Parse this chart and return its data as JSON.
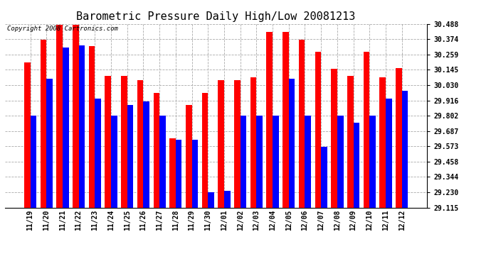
{
  "title": "Barometric Pressure Daily High/Low 20081213",
  "copyright": "Copyright 2008 Cartronics.com",
  "dates": [
    "11/19",
    "11/20",
    "11/21",
    "11/22",
    "11/23",
    "11/24",
    "11/25",
    "11/26",
    "11/27",
    "11/28",
    "11/29",
    "11/30",
    "12/01",
    "12/02",
    "12/03",
    "12/04",
    "12/05",
    "12/06",
    "12/07",
    "12/08",
    "12/09",
    "12/10",
    "12/11",
    "12/12"
  ],
  "highs": [
    30.2,
    30.37,
    30.48,
    30.48,
    30.32,
    30.1,
    30.1,
    30.07,
    29.97,
    29.63,
    29.88,
    29.97,
    30.07,
    30.07,
    30.09,
    30.43,
    30.43,
    30.37,
    30.28,
    30.15,
    30.1,
    30.28,
    30.09,
    30.16
  ],
  "lows": [
    29.8,
    30.08,
    30.31,
    30.33,
    29.93,
    29.8,
    29.88,
    29.91,
    29.8,
    29.62,
    29.62,
    29.23,
    29.24,
    29.8,
    29.8,
    29.8,
    30.08,
    29.8,
    29.57,
    29.8,
    29.75,
    29.8,
    29.93,
    29.99
  ],
  "ylim": [
    29.115,
    30.488
  ],
  "yticks": [
    29.115,
    29.23,
    29.344,
    29.458,
    29.573,
    29.687,
    29.802,
    29.916,
    30.03,
    30.145,
    30.259,
    30.374,
    30.488
  ],
  "high_color": "#ff0000",
  "low_color": "#0000ff",
  "bg_color": "#ffffff",
  "grid_color": "#aaaaaa",
  "bar_width": 0.38,
  "title_fontsize": 11,
  "tick_fontsize": 7,
  "copyright_fontsize": 6.5
}
